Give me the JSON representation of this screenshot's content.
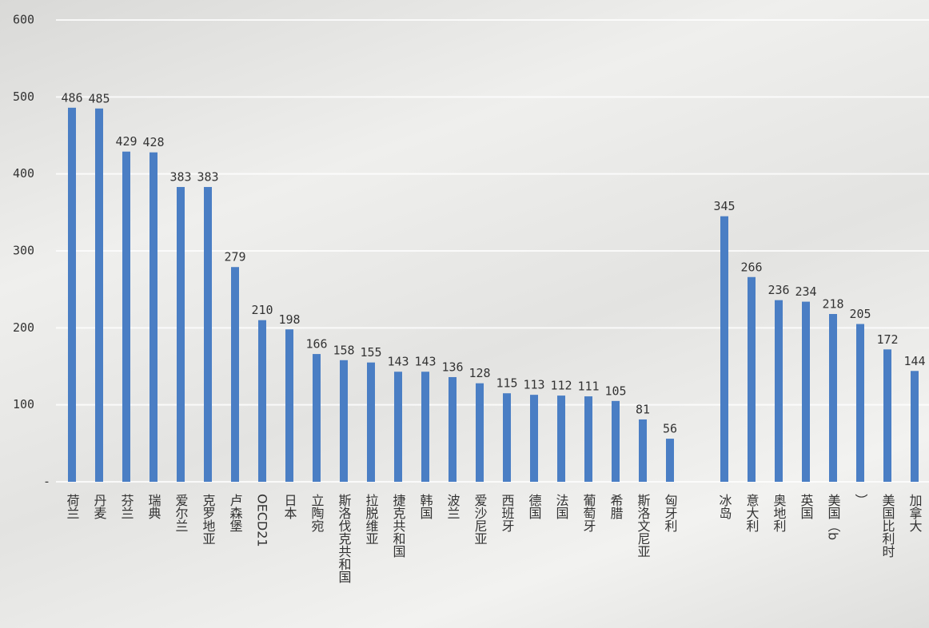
{
  "chart_data": {
    "type": "bar",
    "categories": [
      "荷兰",
      "丹麦",
      "芬兰",
      "瑞典",
      "爱尔兰",
      "克罗地亚",
      "卢森堡",
      "OECD21",
      "日本",
      "立陶宛",
      "斯洛伐克共和国",
      "拉脱维亚",
      "捷克共和国",
      "韩国",
      "波兰",
      "爱沙尼亚",
      "西班牙",
      "德国",
      "法国",
      "葡萄牙",
      "希腊",
      "斯洛文尼亚",
      "匈牙利",
      null,
      "冰岛",
      "意大利",
      "奥地利",
      "英国",
      "美国（b",
      "）",
      "美国比利时",
      "加拿大"
    ],
    "values": [
      486,
      485,
      429,
      428,
      383,
      383,
      279,
      210,
      198,
      166,
      158,
      155,
      143,
      143,
      136,
      128,
      115,
      113,
      112,
      111,
      105,
      81,
      56,
      null,
      345,
      266,
      236,
      234,
      218,
      205,
      172,
      144
    ],
    "color": "#4a7ec4",
    "ylim": [
      0,
      600
    ],
    "yticks": [
      {
        "value": 0,
        "label": "-"
      },
      100,
      200,
      300,
      400,
      500,
      600
    ],
    "grid": true
  }
}
